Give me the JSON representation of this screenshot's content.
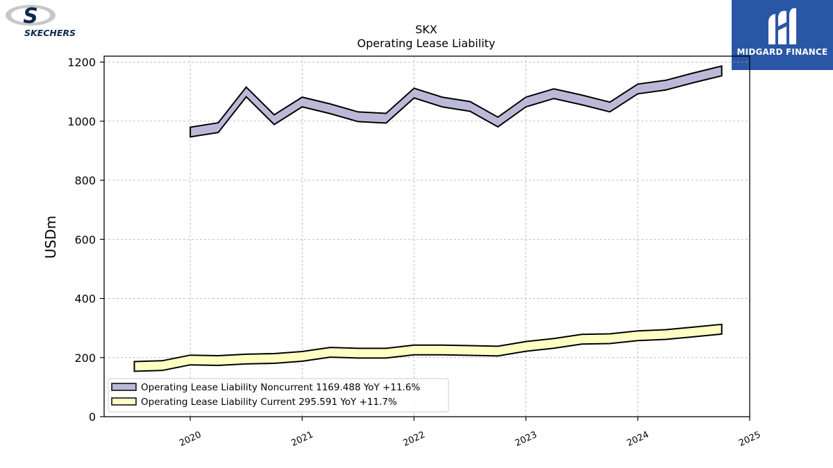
{
  "brand_left": {
    "name": "SKECHERS",
    "icon": "skechers-s-logo"
  },
  "brand_right": {
    "name": "MIDGARD FINANCE",
    "icon": "midgard-m-logo",
    "color": "#2a56a6"
  },
  "chart_data": {
    "type": "area",
    "title": "SKX",
    "subtitle": "Operating Lease Liability",
    "xlabel": "",
    "ylabel": "USDm",
    "xlim": [
      2019.23,
      2025.0
    ],
    "ylim": [
      0,
      1220
    ],
    "x_ticks": [
      2020,
      2021,
      2022,
      2023,
      2024,
      2025
    ],
    "x_tick_labels": [
      "2020",
      "2021",
      "2022",
      "2023",
      "2024",
      "2025"
    ],
    "y_ticks": [
      0,
      200,
      400,
      600,
      800,
      1000,
      1200
    ],
    "y_tick_labels": [
      "0",
      "200",
      "400",
      "600",
      "800",
      "1000",
      "1200"
    ],
    "grid": true,
    "legend_position": "lower-left",
    "series": [
      {
        "name": "Operating Lease Liability Noncurrent",
        "legend_label": "Operating Lease Liability Noncurrent  1169.488 YoY +11.6%",
        "color": "#bcb9d8",
        "x": [
          2020.0,
          2020.25,
          2020.5,
          2020.75,
          2021.0,
          2021.25,
          2021.5,
          2021.75,
          2022.0,
          2022.25,
          2022.5,
          2022.75,
          2023.0,
          2023.25,
          2023.5,
          2023.75,
          2024.0,
          2024.25,
          2024.5,
          2024.75
        ],
        "values": [
          963,
          978,
          1099,
          1005,
          1065,
          1042,
          1015,
          1010,
          1095,
          1065,
          1050,
          997,
          1065,
          1093,
          1072,
          1048,
          1109,
          1122,
          1147,
          1170
        ]
      },
      {
        "name": "Operating Lease Liability Current",
        "legend_label": "Operating Lease Liability Current  295.591 YoY +11.7%",
        "color": "#ffffc4",
        "x": [
          2019.5,
          2019.75,
          2020.0,
          2020.25,
          2020.5,
          2020.75,
          2021.0,
          2021.25,
          2021.5,
          2021.75,
          2022.0,
          2022.25,
          2022.5,
          2022.75,
          2023.0,
          2023.25,
          2023.5,
          2023.75,
          2024.0,
          2024.25,
          2024.5,
          2024.75
        ],
        "values": [
          170,
          173,
          192,
          190,
          195,
          197,
          204,
          218,
          215,
          215,
          226,
          226,
          224,
          222,
          238,
          248,
          262,
          264,
          274,
          278,
          287,
          296
        ]
      }
    ]
  }
}
